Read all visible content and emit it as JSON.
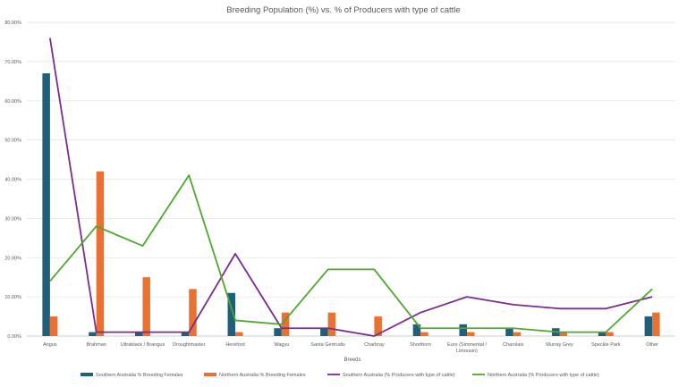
{
  "chart_data": {
    "type": "bar",
    "title": "Breeding Population (%) vs. % of Producers with type of cattle",
    "xlabel": "Breeds",
    "ylabel": "",
    "ylim": [
      0,
      80
    ],
    "yticks": [
      "0.00%",
      "10.00%",
      "20.00%",
      "30.00%",
      "40.00%",
      "50.00%",
      "60.00%",
      "70.00%",
      "80.00%"
    ],
    "grid": true,
    "legend_position": "bottom",
    "categories": [
      "Angus",
      "Brahman",
      "Ultrablack / Brangus",
      "Droughtmaster",
      "Hereford",
      "Wagyu",
      "Santa Gertrudis",
      "Charbray",
      "Shorthorn",
      "Euro (Simmental / Limousin)",
      "Charolais",
      "Murray Grey",
      "Speckle Park",
      "Other"
    ],
    "series": [
      {
        "name": "Southern Australia % Breeding Females",
        "type": "bar",
        "color": "#1f5f7a",
        "values": [
          67,
          1,
          1,
          1,
          11,
          2,
          2,
          0,
          3,
          3,
          2,
          2,
          1,
          5
        ]
      },
      {
        "name": "Northern Australia % Breeding Females",
        "type": "bar",
        "color": "#e97132",
        "values": [
          5,
          42,
          15,
          12,
          1,
          6,
          6,
          5,
          1,
          1,
          1,
          1,
          1,
          6
        ]
      },
      {
        "name": "Southern Australia (% Producers with type of cattle)",
        "type": "line",
        "color": "#7b2c8f",
        "values": [
          76,
          1,
          1,
          1,
          21,
          2,
          2,
          0,
          6,
          10,
          8,
          7,
          7,
          10
        ]
      },
      {
        "name": "Northern Australia (% Producers with type of cattle)",
        "type": "line",
        "color": "#4ea72e",
        "values": [
          14,
          28,
          23,
          41,
          4,
          3,
          17,
          17,
          2,
          2,
          2,
          1,
          1,
          12
        ]
      }
    ]
  }
}
